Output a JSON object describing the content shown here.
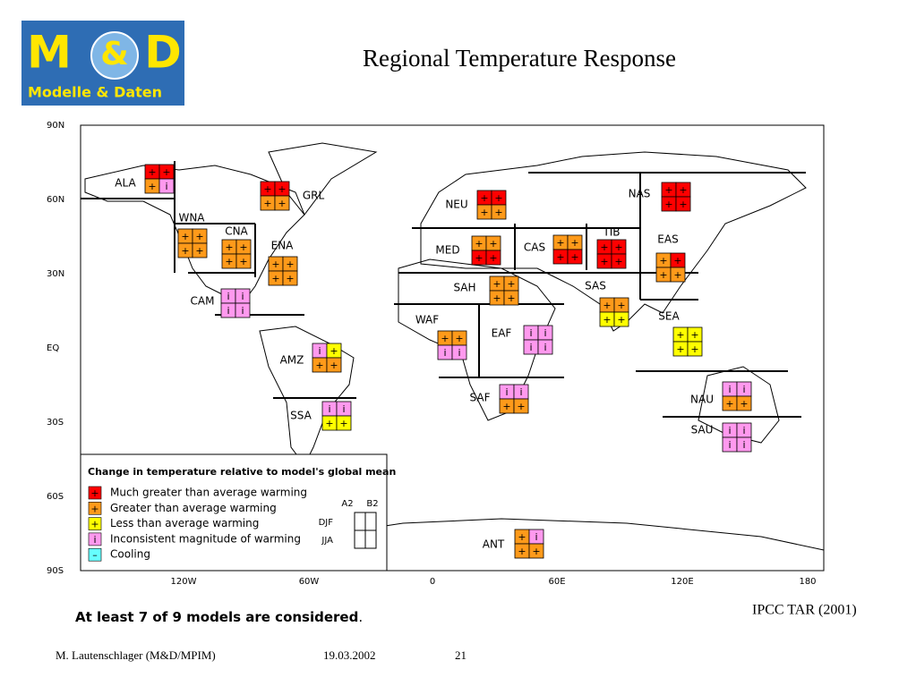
{
  "logo": {
    "m": "M",
    "amp": "&",
    "d": "D",
    "subtitle": "Modelle & Daten"
  },
  "header": {
    "title": "Regional Temperature Response"
  },
  "map": {
    "lat_labels": [
      "90N",
      "60N",
      "30N",
      "EQ",
      "30S",
      "60S",
      "90S"
    ],
    "lon_labels": [
      "120W",
      "60W",
      "0",
      "60E",
      "120E",
      "180"
    ],
    "regions": [
      {
        "name": "ALA",
        "cells": [
          0,
          0,
          1,
          3
        ]
      },
      {
        "name": "GRL",
        "cells": [
          0,
          0,
          1,
          1
        ]
      },
      {
        "name": "NEU",
        "cells": [
          0,
          0,
          1,
          1
        ]
      },
      {
        "name": "NAS",
        "cells": [
          0,
          0,
          0,
          0
        ]
      },
      {
        "name": "WNA",
        "cells": [
          1,
          1,
          1,
          1
        ]
      },
      {
        "name": "CNA",
        "cells": [
          1,
          1,
          1,
          1
        ]
      },
      {
        "name": "ENA",
        "cells": [
          1,
          1,
          1,
          1
        ]
      },
      {
        "name": "MED",
        "cells": [
          1,
          1,
          0,
          0
        ]
      },
      {
        "name": "CAS",
        "cells": [
          1,
          1,
          0,
          0
        ]
      },
      {
        "name": "TIB",
        "cells": [
          0,
          0,
          0,
          0
        ]
      },
      {
        "name": "EAS",
        "cells": [
          1,
          0,
          1,
          1
        ]
      },
      {
        "name": "CAM",
        "cells": [
          3,
          3,
          3,
          3
        ]
      },
      {
        "name": "SAH",
        "cells": [
          1,
          1,
          1,
          1
        ]
      },
      {
        "name": "SAS",
        "cells": [
          1,
          1,
          2,
          2
        ]
      },
      {
        "name": "SEA",
        "cells": [
          2,
          2,
          2,
          2
        ]
      },
      {
        "name": "WAF",
        "cells": [
          1,
          1,
          3,
          3
        ]
      },
      {
        "name": "EAF",
        "cells": [
          3,
          3,
          3,
          3
        ]
      },
      {
        "name": "AMZ",
        "cells": [
          3,
          2,
          1,
          1
        ]
      },
      {
        "name": "SAF",
        "cells": [
          3,
          3,
          1,
          1
        ]
      },
      {
        "name": "NAU",
        "cells": [
          3,
          3,
          1,
          1
        ]
      },
      {
        "name": "SSA",
        "cells": [
          3,
          3,
          2,
          2
        ]
      },
      {
        "name": "SAU",
        "cells": [
          3,
          3,
          3,
          3
        ]
      },
      {
        "name": "ANT",
        "cells": [
          1,
          3,
          1,
          1
        ]
      }
    ]
  },
  "legend": {
    "title": "Change in temperature relative to model's global mean",
    "items": [
      {
        "symbol": "+",
        "color": "#ff0000",
        "label": "Much greater than average warming"
      },
      {
        "symbol": "+",
        "color": "#ff9a1a",
        "label": "Greater than average warming"
      },
      {
        "symbol": "+",
        "color": "#ffff00",
        "label": "Less than average warming"
      },
      {
        "symbol": "i",
        "color": "#ff99ee",
        "label": "Inconsistent magnitude of warming"
      },
      {
        "symbol": "–",
        "color": "#66ffff",
        "label": "Cooling"
      }
    ],
    "columns": [
      "A2",
      "B2"
    ],
    "rows": [
      "DJF",
      "JJA"
    ]
  },
  "footer": {
    "note": "At least 7 of 9 models are considered",
    "note_end": ".",
    "source": "IPCC TAR (2001)",
    "author": "M. Lautenschlager (M&D/MPIM)",
    "date": "19.03.2002",
    "page": "21"
  }
}
